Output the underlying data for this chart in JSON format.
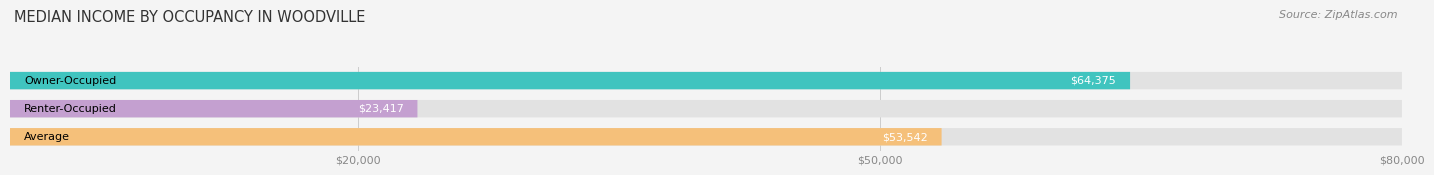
{
  "title": "MEDIAN INCOME BY OCCUPANCY IN WOODVILLE",
  "source": "Source: ZipAtlas.com",
  "categories": [
    "Owner-Occupied",
    "Renter-Occupied",
    "Average"
  ],
  "values": [
    64375,
    23417,
    53542
  ],
  "bar_colors": [
    "#40c4bf",
    "#c4a0d0",
    "#f5c07a"
  ],
  "bar_labels": [
    "$64,375",
    "$23,417",
    "$53,542"
  ],
  "xlim": [
    0,
    80000
  ],
  "xticks": [
    20000,
    50000,
    80000
  ],
  "xtick_labels": [
    "$20,000",
    "$50,000",
    "$80,000"
  ],
  "fig_bg": "#f4f4f4",
  "bar_bg_color": "#e2e2e2",
  "title_fontsize": 10.5,
  "source_fontsize": 8,
  "label_fontsize": 8,
  "value_fontsize": 8,
  "bar_height": 0.62,
  "label_value_color_inside": "#ffffff",
  "label_value_color_outside": "#666666"
}
